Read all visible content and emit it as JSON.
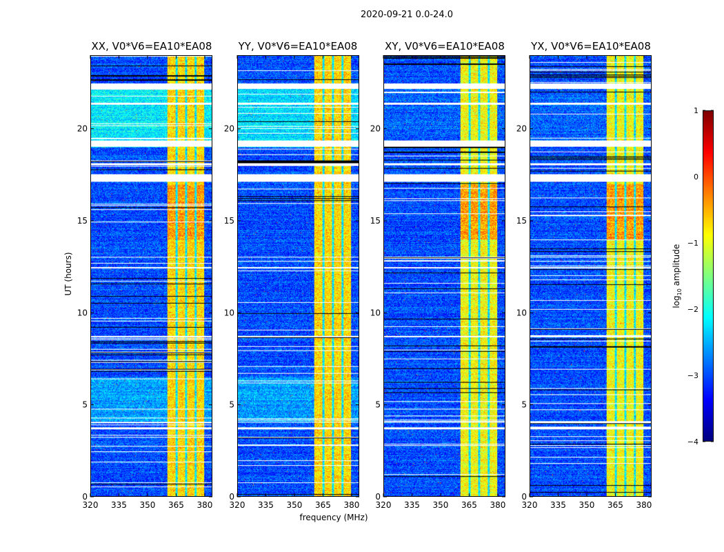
{
  "figure_title": "2020-09-21 0.0-24.0",
  "chart_data": {
    "type": "heatmap",
    "title": "2020-09-21 0.0-24.0",
    "xlabel": "frequency (MHz)",
    "ylabel": "UT (hours)",
    "xlim": [
      320,
      384
    ],
    "ylim": [
      0,
      24
    ],
    "xticks": [
      320,
      335,
      350,
      365,
      380
    ],
    "yticks": [
      0,
      5,
      10,
      15,
      20
    ],
    "panels": [
      {
        "title": "XX, V0*V6=EA10*EA08",
        "upper_level": -2.2
      },
      {
        "title": "YY, V0*V6=EA10*EA08",
        "upper_level": -2.3
      },
      {
        "title": "XY, V0*V6=EA10*EA08",
        "upper_level": -2.9
      },
      {
        "title": "YX, V0*V6=EA10*EA08",
        "upper_level": -2.9
      }
    ],
    "bright_band_mhz": [
      360.5,
      380
    ],
    "band_gap_lines_mhz": [
      365.5,
      370.5,
      375.5
    ],
    "flagged_ut_intervals": [
      [
        22.2,
        22.5
      ],
      [
        21.35,
        21.45
      ],
      [
        19.05,
        19.4
      ],
      [
        18.05,
        18.15
      ],
      [
        17.15,
        17.55
      ],
      [
        8.65,
        8.75
      ],
      [
        4.0,
        4.05
      ],
      [
        3.65,
        3.75
      ],
      [
        13.0,
        13.05
      ],
      [
        12.4,
        12.5
      ]
    ],
    "colorbar": {
      "label": "log10 amplitude",
      "range": [
        -4,
        1
      ],
      "ticks": [
        "1",
        "0",
        "−1",
        "−2",
        "−3",
        "−4"
      ],
      "colormap": "jet"
    }
  }
}
